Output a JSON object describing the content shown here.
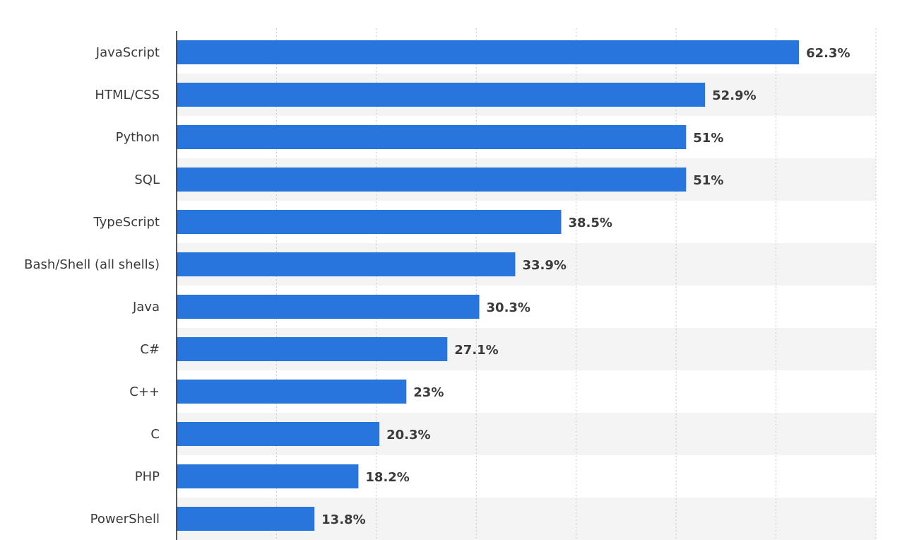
{
  "chart_data": {
    "type": "bar",
    "orientation": "horizontal",
    "categories": [
      "JavaScript",
      "HTML/CSS",
      "Python",
      "SQL",
      "TypeScript",
      "Bash/Shell (all shells)",
      "Java",
      "C#",
      "C++",
      "C",
      "PHP",
      "PowerShell"
    ],
    "values": [
      62.3,
      52.9,
      51,
      51,
      38.5,
      33.9,
      30.3,
      27.1,
      23,
      20.3,
      18.2,
      13.8
    ],
    "value_labels": [
      "62.3%",
      "52.9%",
      "51%",
      "51%",
      "38.5%",
      "33.9%",
      "30.3%",
      "27.1%",
      "23%",
      "20.3%",
      "18.2%",
      "13.8%"
    ],
    "title": "",
    "xlabel": "",
    "ylabel": "",
    "xlim": [
      0,
      70
    ],
    "grid": true,
    "bar_color": "#2875dd",
    "stripe_color": "#f4f4f4",
    "grid_color": "#c8c8c8",
    "axis_color": "#222222"
  }
}
